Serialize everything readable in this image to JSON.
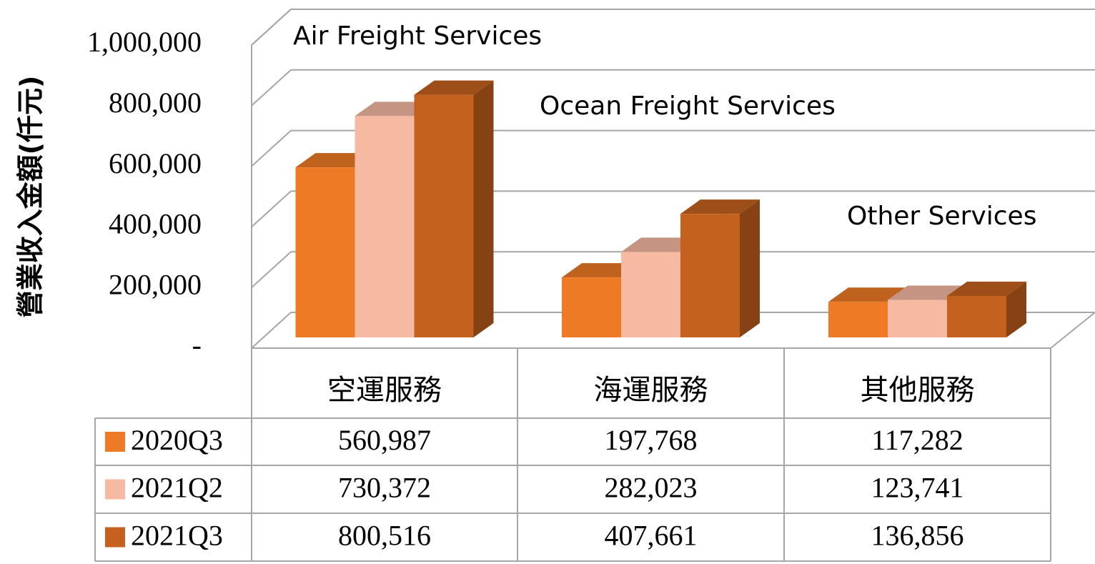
{
  "chart_data": {
    "type": "bar3d",
    "y_label": "營業收入金額(仟元)",
    "annotations": [
      "Air Freight Services",
      "Ocean Freight Services",
      "Other Services"
    ],
    "categories": [
      "空運服務",
      "海運服務",
      "其他服務"
    ],
    "series": [
      {
        "name": "2020Q3",
        "color": "#ee7a26",
        "values": [
          560987,
          197768,
          117282
        ],
        "value_labels": [
          "560,987",
          "197,768",
          "117,282"
        ]
      },
      {
        "name": "2021Q2",
        "color": "#f6b9a2",
        "values": [
          730372,
          282023,
          123741
        ],
        "value_labels": [
          "730,372",
          "282,023",
          "123,741"
        ]
      },
      {
        "name": "2021Q3",
        "color": "#c5611e",
        "values": [
          800516,
          407661,
          136856
        ],
        "value_labels": [
          "800,516",
          "407,661",
          "136,856"
        ]
      }
    ],
    "ylim": [
      0,
      1000000
    ],
    "yticks": [
      {
        "value": 0,
        "label": "-"
      },
      {
        "value": 200000,
        "label": "200,000"
      },
      {
        "value": 400000,
        "label": "400,000"
      },
      {
        "value": 600000,
        "label": "600,000"
      },
      {
        "value": 800000,
        "label": "800,000"
      },
      {
        "value": 1000000,
        "label": "1,000,000"
      }
    ],
    "grid": true
  }
}
